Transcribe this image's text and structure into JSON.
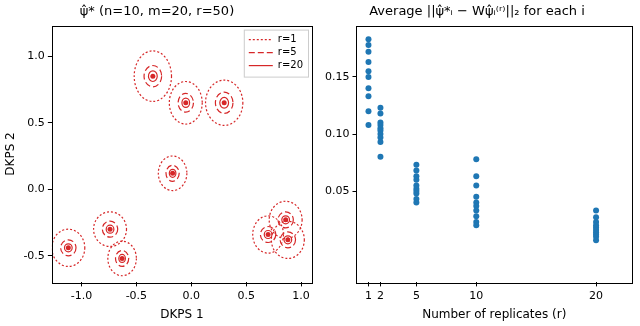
{
  "chart_data": [
    {
      "type": "scatter",
      "title": "ψ̂* (n=10, m=20, r=50)",
      "x_label": "DKPS 1",
      "y_label": "DKPS 2",
      "x": [
        -0.35,
        -0.05,
        0.3,
        -0.17,
        -1.12,
        -0.74,
        -0.63,
        0.7,
        0.86,
        0.88
      ],
      "values": [
        0.85,
        0.65,
        0.65,
        0.12,
        -0.44,
        -0.3,
        -0.52,
        -0.34,
        -0.23,
        -0.38
      ],
      "color": "#d62728",
      "marker": "circle",
      "xlim": [
        -1.27,
        1.1
      ],
      "xticks": [
        {
          "value": -1,
          "label": "-1.0"
        },
        -0.5,
        {
          "value": 0,
          "label": "0.0"
        },
        0.5,
        {
          "value": 1,
          "label": "1.0"
        }
      ],
      "ylim": [
        -0.7,
        1.23
      ],
      "yticks": [
        -0.5,
        {
          "value": 0,
          "label": "0.0"
        },
        0.5,
        {
          "value": 1,
          "label": "1.0"
        }
      ],
      "grid": false,
      "legend": "upper right",
      "series": [
        {
          "name": "r=1",
          "line_style": "dotted",
          "x_radius": [
            0.17,
            0.15,
            0.17,
            0.13,
            0.15,
            0.15,
            0.13,
            0.14,
            0.15,
            0.15
          ],
          "y_radius": [
            0.19,
            0.16,
            0.17,
            0.13,
            0.14,
            0.13,
            0.13,
            0.14,
            0.14,
            0.14
          ]
        },
        {
          "name": "r=5",
          "line_style": "dashed",
          "x_radius": [
            0.08,
            0.07,
            0.08,
            0.06,
            0.07,
            0.07,
            0.06,
            0.07,
            0.07,
            0.07
          ],
          "y_radius": [
            0.08,
            0.07,
            0.08,
            0.06,
            0.06,
            0.06,
            0.06,
            0.06,
            0.06,
            0.06
          ]
        },
        {
          "name": "r=20",
          "line_style": "solid",
          "x_radius": [
            0.04,
            0.035,
            0.04,
            0.03,
            0.035,
            0.035,
            0.03,
            0.035,
            0.035,
            0.035
          ],
          "y_radius": [
            0.04,
            0.035,
            0.04,
            0.03,
            0.03,
            0.03,
            0.03,
            0.03,
            0.03,
            0.03
          ]
        }
      ]
    },
    {
      "type": "scatter",
      "title": "Average ||ψ̂*ᵢ − Wψ̂ᵢ⁽ʳ⁾||₂ for each i",
      "x_label": "Number of replicates (r)",
      "x": [
        1,
        2,
        5,
        10,
        20
      ],
      "values": [
        [
          0.183,
          0.178,
          0.172,
          0.163,
          0.155,
          0.15,
          0.14,
          0.133,
          0.12,
          0.108
        ],
        [
          0.123,
          0.118,
          0.11,
          0.108,
          0.105,
          0.103,
          0.1,
          0.097,
          0.093,
          0.08
        ],
        [
          0.073,
          0.068,
          0.063,
          0.06,
          0.055,
          0.052,
          0.05,
          0.048,
          0.043,
          0.04
        ],
        [
          0.078,
          0.063,
          0.055,
          0.045,
          0.04,
          0.037,
          0.033,
          0.028,
          0.023,
          0.02
        ],
        [
          0.033,
          0.027,
          0.023,
          0.02,
          0.018,
          0.016,
          0.014,
          0.012,
          0.01,
          0.007
        ]
      ],
      "color": "#1f77b4",
      "marker": "circle",
      "xlim": [
        0,
        23
      ],
      "xticks": [
        1,
        2,
        5,
        10,
        20
      ],
      "ylim": [
        -0.03,
        0.195
      ],
      "yticks": [
        0.05,
        {
          "value": 0.1,
          "label": "0.10"
        },
        0.15
      ],
      "grid": false
    }
  ]
}
